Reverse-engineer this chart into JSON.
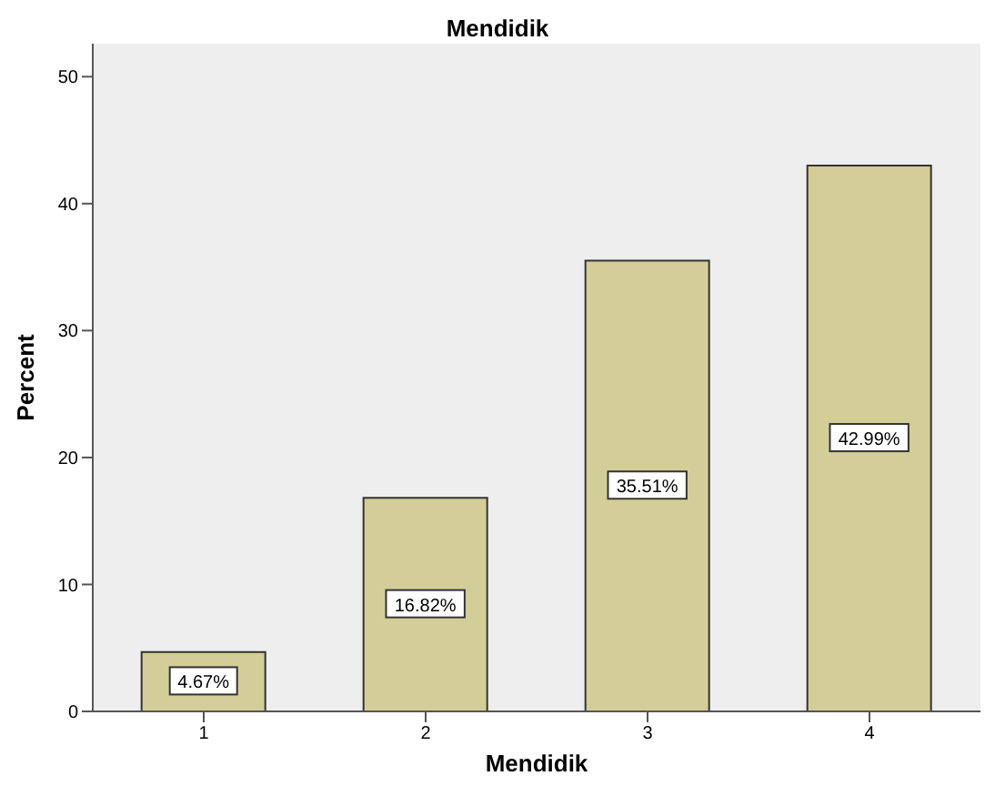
{
  "chart_data": {
    "type": "bar",
    "title": "Mendidik",
    "xlabel": "Mendidik",
    "ylabel": "Percent",
    "categories": [
      "1",
      "2",
      "3",
      "4"
    ],
    "values": [
      4.67,
      16.82,
      35.51,
      42.99
    ],
    "value_labels": [
      "4.67%",
      "16.82%",
      "35.51%",
      "42.99%"
    ],
    "color": "#d3ce97",
    "ylim": [
      0,
      52.6
    ],
    "yticks": [
      0,
      10,
      20,
      30,
      40,
      50
    ]
  }
}
